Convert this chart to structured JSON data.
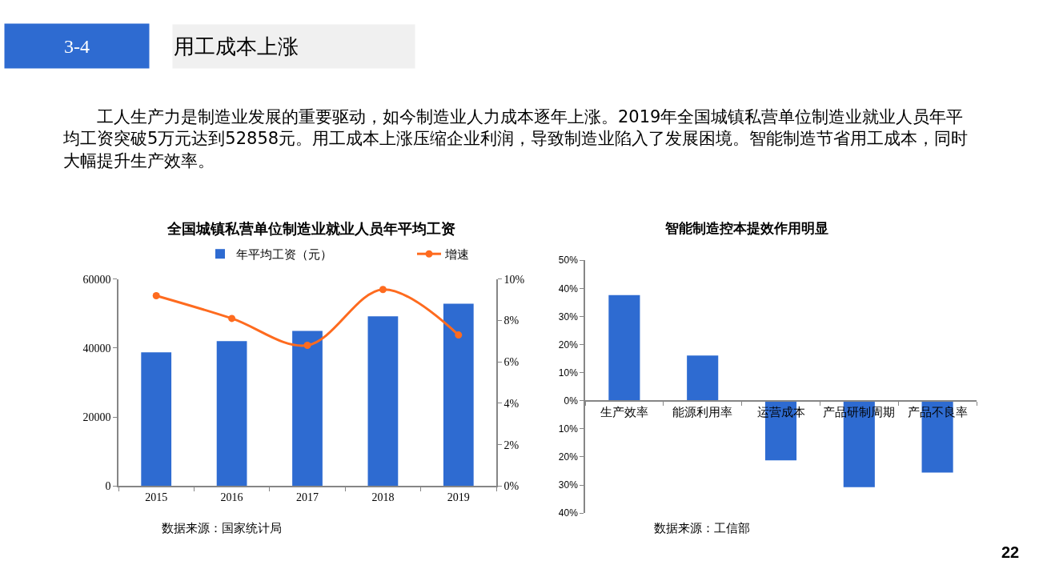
{
  "chart_data": [
    {
      "type": "other",
      "title": "用工成本上涨",
      "annotations": [
        "3-4",
        "工人生产力是制造业发展的重要驱动，如今制造业人力成本逐年上涨。2019年全国城镇私营单位制造业就业人员年平均工资突破5万元达到52858元。用工成本上涨压缩企业利润，导致制造业陷入了发展困境。智能制造节省用工成本，同时大幅提升生产效率。",
        "22"
      ]
    },
    {
      "type": "bar",
      "title": "全国城镇私营单位制造业就业人员年平均工资",
      "categories": [
        "2015",
        "2016",
        "2017",
        "2018",
        "2019"
      ],
      "series": [
        {
          "name": "年平均工资（元）",
          "type": "bar",
          "color": "#2e6bd1",
          "values": [
            38800,
            42000,
            45000,
            49200,
            52900
          ]
        },
        {
          "name": "增速",
          "type": "line",
          "axis": "y2",
          "color": "#fe6b1f",
          "values": [
            9.2,
            8.1,
            6.8,
            9.5,
            7.3
          ]
        }
      ],
      "ylim": [
        0,
        60000
      ],
      "yticks": [
        0,
        20000,
        40000,
        60000
      ],
      "y2lim": [
        0,
        10
      ],
      "y2ticks": [
        {
          "value": 0,
          "label": "0%"
        },
        {
          "value": 2,
          "label": "2%"
        },
        {
          "value": 4,
          "label": "4%"
        },
        {
          "value": 6,
          "label": "6%"
        },
        {
          "value": 8,
          "label": "8%"
        },
        {
          "value": 10,
          "label": "10%"
        }
      ],
      "marker": "circle",
      "legend": "top",
      "grid": false,
      "annotations": [
        "数据来源：国家统计局"
      ]
    },
    {
      "type": "bar",
      "title": "智能制造控本提效作用明显",
      "categories": [
        "生产效率",
        "能源利用率",
        "运营成本",
        "产品研制周期",
        "产品不良率"
      ],
      "values": [
        37.6,
        16.1,
        -21.2,
        -30.8,
        -25.6
      ],
      "color": "#2e6bd1",
      "ylim": [
        -40,
        50
      ],
      "yticks": [
        {
          "value": -40,
          "label": "40%"
        },
        {
          "value": -30,
          "label": "30%"
        },
        {
          "value": -20,
          "label": "20%"
        },
        {
          "value": -10,
          "label": "10%"
        },
        {
          "value": 0,
          "label": "0%"
        },
        {
          "value": 10,
          "label": "10%"
        },
        {
          "value": 20,
          "label": "20%"
        },
        {
          "value": 30,
          "label": "30%"
        },
        {
          "value": 40,
          "label": "40%"
        },
        {
          "value": 50,
          "label": "50%"
        }
      ],
      "grid": false,
      "annotations": [
        "数据来源：工信部"
      ]
    }
  ]
}
